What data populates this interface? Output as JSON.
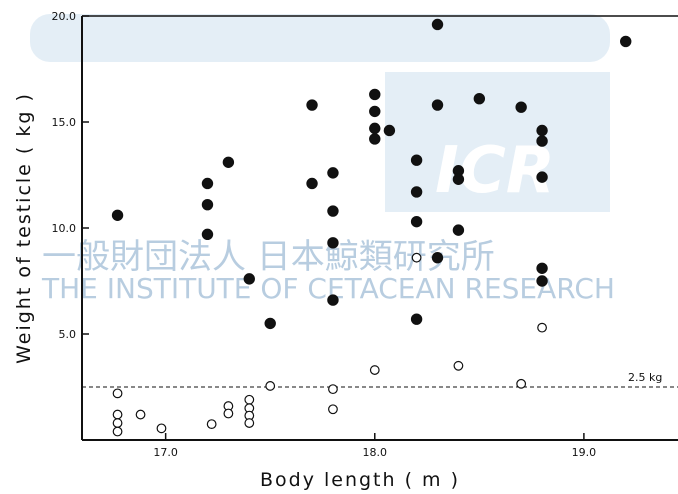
{
  "chart_data": {
    "type": "scatter",
    "title": "",
    "xlabel": "Body length  ( m )",
    "ylabel": "Weight of testicle  ( kg )",
    "xlim": [
      16.6,
      19.45
    ],
    "ylim": [
      0,
      20.0
    ],
    "x_ticks": [
      "17.0",
      "18.0",
      "19.0"
    ],
    "y_ticks": [
      "5.0",
      "10.0",
      "15.0",
      "20.0"
    ],
    "y_tick_values": [
      5,
      10,
      15,
      20
    ],
    "x_tick_values": [
      17,
      18,
      19
    ],
    "grid": false,
    "threshold": {
      "y": 2.5,
      "label": "2.5 kg",
      "style": "dashed"
    },
    "series": [
      {
        "marker": "filled-circle",
        "color": "#111111",
        "points": [
          [
            16.77,
            10.6
          ],
          [
            17.2,
            12.1
          ],
          [
            17.2,
            11.1
          ],
          [
            17.2,
            9.7
          ],
          [
            17.3,
            13.1
          ],
          [
            17.4,
            7.6
          ],
          [
            17.5,
            5.5
          ],
          [
            17.7,
            15.8
          ],
          [
            17.7,
            12.1
          ],
          [
            17.8,
            12.6
          ],
          [
            17.8,
            10.8
          ],
          [
            17.8,
            9.3
          ],
          [
            17.8,
            6.6
          ],
          [
            18.0,
            16.3
          ],
          [
            18.0,
            15.5
          ],
          [
            18.0,
            14.7
          ],
          [
            18.0,
            14.2
          ],
          [
            18.07,
            14.6
          ],
          [
            18.2,
            13.2
          ],
          [
            18.2,
            11.7
          ],
          [
            18.2,
            10.3
          ],
          [
            18.2,
            5.7
          ],
          [
            18.3,
            19.6
          ],
          [
            18.3,
            15.8
          ],
          [
            18.3,
            8.6
          ],
          [
            18.4,
            12.7
          ],
          [
            18.4,
            12.3
          ],
          [
            18.4,
            9.9
          ],
          [
            18.5,
            16.1
          ],
          [
            18.7,
            15.7
          ],
          [
            18.8,
            14.6
          ],
          [
            18.8,
            14.1
          ],
          [
            18.8,
            12.4
          ],
          [
            18.8,
            8.1
          ],
          [
            18.8,
            7.5
          ],
          [
            19.2,
            18.8
          ]
        ]
      },
      {
        "marker": "open-circle",
        "color": "#111111",
        "points": [
          [
            16.77,
            2.2
          ],
          [
            16.77,
            1.2
          ],
          [
            16.77,
            0.8
          ],
          [
            16.77,
            0.4
          ],
          [
            16.88,
            1.2
          ],
          [
            16.98,
            0.55
          ],
          [
            17.22,
            0.75
          ],
          [
            17.3,
            1.6
          ],
          [
            17.3,
            1.25
          ],
          [
            17.4,
            1.9
          ],
          [
            17.4,
            1.5
          ],
          [
            17.4,
            1.15
          ],
          [
            17.4,
            0.8
          ],
          [
            17.5,
            2.55
          ],
          [
            17.8,
            2.4
          ],
          [
            17.8,
            1.45
          ],
          [
            18.0,
            3.3
          ],
          [
            18.2,
            8.6
          ],
          [
            18.4,
            3.5
          ],
          [
            18.7,
            2.65
          ],
          [
            18.8,
            5.3
          ]
        ]
      }
    ]
  },
  "watermark": {
    "big_text": "ICR",
    "jp_text": "一般財団法人 日本鯨類研究所",
    "en_text": "THE INSTITUTE OF CETACEAN RESEARCH"
  }
}
